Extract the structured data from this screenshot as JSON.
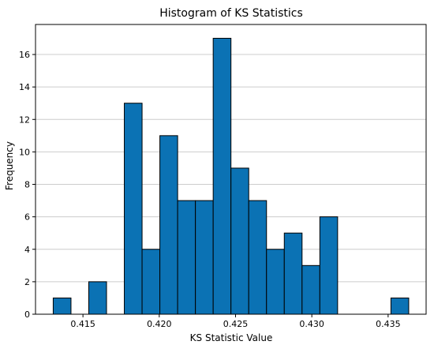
{
  "chart_data": {
    "type": "bar",
    "title": "Histogram of KS Statistics",
    "xlabel": "KS Statistic Value",
    "ylabel": "Frequency",
    "bin_start": 0.41305,
    "bin_width": 0.001165,
    "values": [
      1,
      0,
      2,
      0,
      13,
      4,
      11,
      7,
      7,
      17,
      9,
      7,
      4,
      5,
      3,
      6,
      0,
      0,
      0,
      1
    ],
    "xlim": [
      0.41189,
      0.43749
    ],
    "ylim": [
      0,
      17.85
    ],
    "xticks": [
      0.415,
      0.42,
      0.425,
      0.43,
      0.435
    ],
    "xtick_labels": [
      "0.415",
      "0.420",
      "0.425",
      "0.430",
      "0.435"
    ],
    "yticks": [
      0,
      2,
      4,
      6,
      8,
      10,
      12,
      14,
      16
    ],
    "ytick_labels": [
      "0",
      "2",
      "4",
      "6",
      "8",
      "10",
      "12",
      "14",
      "16"
    ],
    "grid": "y",
    "colors": {
      "bar": "#0b72b4",
      "edge": "#000000",
      "grid": "#cccccc"
    }
  }
}
